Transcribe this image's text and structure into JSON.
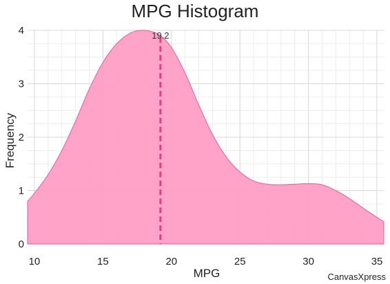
{
  "chart_data": {
    "type": "area",
    "title": "MPG Histogram",
    "xlabel": "MPG",
    "ylabel": "Frequency",
    "xlim": [
      9.5,
      35.5
    ],
    "ylim": [
      0,
      4
    ],
    "x_ticks": [
      10,
      15,
      20,
      25,
      30,
      35
    ],
    "y_ticks": [
      0,
      1,
      2,
      3,
      4
    ],
    "grid": true,
    "series": [
      {
        "x": [
          9.5,
          10,
          11,
          12,
          13,
          14,
          15,
          16,
          17,
          17.8,
          18.5,
          19.2,
          20,
          21,
          22,
          23,
          24,
          25,
          26,
          27,
          28,
          29,
          30,
          31,
          32,
          33,
          34,
          35,
          35.5
        ],
        "values": [
          0.8,
          0.95,
          1.3,
          1.75,
          2.3,
          2.9,
          3.4,
          3.75,
          3.95,
          4.0,
          3.98,
          3.9,
          3.68,
          3.2,
          2.6,
          2.05,
          1.63,
          1.35,
          1.18,
          1.12,
          1.11,
          1.12,
          1.13,
          1.11,
          1.0,
          0.85,
          0.67,
          0.5,
          0.42
        ]
      }
    ],
    "reference_line": {
      "x": 19.2,
      "label": "19.2"
    },
    "colors": {
      "fill": "#ff99c2",
      "stroke": "#e85d9a",
      "reference": "#e0407e",
      "grid": "#d9d9d9"
    }
  },
  "credit": "CanvasXpress"
}
